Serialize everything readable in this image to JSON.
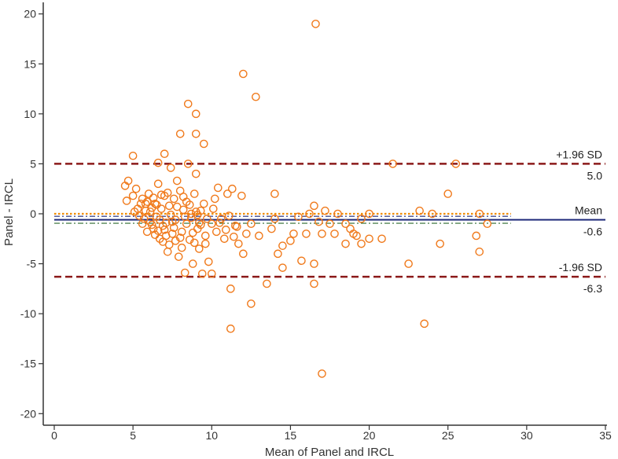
{
  "chart_data": {
    "type": "scatter",
    "title": "",
    "xlabel": "Mean of Panel and IRCL",
    "ylabel": "Panel - IRCL",
    "xlim": [
      0,
      35
    ],
    "ylim": [
      -21,
      21
    ],
    "xticks": [
      0,
      5,
      10,
      15,
      20,
      25,
      30,
      35
    ],
    "yticks": [
      -20,
      -15,
      -10,
      -5,
      0,
      5,
      10,
      15,
      20
    ],
    "grid": false,
    "reference_lines": [
      {
        "name": "+1.96 SD",
        "value": 5.0,
        "value_label": "5.0",
        "color": "#8b1a1a",
        "style": "dashed"
      },
      {
        "name": "Mean",
        "value": -0.6,
        "value_label": "-0.6",
        "color": "#1f2a7a",
        "style": "solid"
      },
      {
        "name": "-1.96 SD",
        "value": -6.3,
        "value_label": "-6.3",
        "color": "#8b1a1a",
        "style": "dashed"
      },
      {
        "name": "zero",
        "value": 0.0,
        "color": "#f08c00",
        "style": "dotted"
      },
      {
        "name": "ci-upper",
        "value": -0.25,
        "color": "#1f2a7a",
        "style": "dashdot"
      },
      {
        "name": "ci-lower",
        "value": -0.95,
        "color": "#2e6b2e",
        "style": "dashdot"
      }
    ],
    "ref_line_x_end": 29,
    "marker_color": "#f07a1c",
    "points": [
      [
        4.5,
        2.8
      ],
      [
        4.7,
        3.3
      ],
      [
        4.6,
        1.3
      ],
      [
        5.0,
        5.8
      ],
      [
        5.0,
        1.8
      ],
      [
        5.2,
        2.5
      ],
      [
        5.1,
        0.2
      ],
      [
        5.3,
        0.5
      ],
      [
        5.4,
        -0.2
      ],
      [
        5.5,
        1.0
      ],
      [
        5.6,
        1.5
      ],
      [
        5.7,
        -0.5
      ],
      [
        5.8,
        0.3
      ],
      [
        5.6,
        -1.0
      ],
      [
        5.9,
        1.2
      ],
      [
        6.0,
        2.0
      ],
      [
        6.1,
        -0.8
      ],
      [
        6.2,
        0.6
      ],
      [
        6.3,
        -1.5
      ],
      [
        6.4,
        1.0
      ],
      [
        6.5,
        -0.3
      ],
      [
        6.6,
        3.0
      ],
      [
        6.6,
        5.1
      ],
      [
        6.7,
        -2.5
      ],
      [
        6.8,
        0.5
      ],
      [
        6.9,
        -1.2
      ],
      [
        7.0,
        6.0
      ],
      [
        7.0,
        1.8
      ],
      [
        7.1,
        -0.9
      ],
      [
        7.2,
        -3.8
      ],
      [
        7.3,
        0.8
      ],
      [
        7.4,
        4.6
      ],
      [
        7.5,
        -2.0
      ],
      [
        7.6,
        1.5
      ],
      [
        7.7,
        -0.6
      ],
      [
        7.8,
        3.3
      ],
      [
        7.9,
        -4.3
      ],
      [
        8.0,
        8.0
      ],
      [
        8.0,
        2.3
      ],
      [
        8.1,
        -1.8
      ],
      [
        8.2,
        0.4
      ],
      [
        8.3,
        -5.9
      ],
      [
        8.4,
        1.2
      ],
      [
        8.5,
        11.0
      ],
      [
        8.5,
        5.0
      ],
      [
        8.6,
        -2.6
      ],
      [
        8.7,
        0.0
      ],
      [
        8.8,
        -5.0
      ],
      [
        8.9,
        2.0
      ],
      [
        9.0,
        10.0
      ],
      [
        9.0,
        8.0
      ],
      [
        9.0,
        4.0
      ],
      [
        9.1,
        -1.5
      ],
      [
        9.2,
        -3.5
      ],
      [
        9.3,
        0.3
      ],
      [
        9.4,
        -6.0
      ],
      [
        9.5,
        7.0
      ],
      [
        9.5,
        1.0
      ],
      [
        9.6,
        -2.2
      ],
      [
        9.7,
        -0.5
      ],
      [
        9.8,
        -4.8
      ],
      [
        10.0,
        -1.0
      ],
      [
        10.0,
        -6.0
      ],
      [
        10.2,
        1.5
      ],
      [
        10.4,
        2.6
      ],
      [
        10.6,
        -0.5
      ],
      [
        10.8,
        -2.5
      ],
      [
        11.0,
        2.0
      ],
      [
        11.1,
        -0.2
      ],
      [
        11.2,
        -7.5
      ],
      [
        11.2,
        -11.5
      ],
      [
        11.3,
        2.5
      ],
      [
        11.5,
        -1.2
      ],
      [
        11.7,
        -3.0
      ],
      [
        11.9,
        1.8
      ],
      [
        12.0,
        14.0
      ],
      [
        12.0,
        -4.0
      ],
      [
        12.2,
        -2.0
      ],
      [
        12.5,
        -9.0
      ],
      [
        12.5,
        -1.0
      ],
      [
        12.8,
        11.7
      ],
      [
        13.0,
        -2.2
      ],
      [
        13.5,
        -7.0
      ],
      [
        14.0,
        2.0
      ],
      [
        14.0,
        -0.5
      ],
      [
        14.2,
        -4.0
      ],
      [
        14.5,
        -5.4
      ],
      [
        14.5,
        -3.2
      ],
      [
        15.0,
        -2.7
      ],
      [
        15.5,
        -0.3
      ],
      [
        15.7,
        -4.7
      ],
      [
        16.0,
        -2.0
      ],
      [
        16.2,
        0.0
      ],
      [
        16.5,
        0.8
      ],
      [
        16.5,
        -5.0
      ],
      [
        16.5,
        -7.0
      ],
      [
        16.6,
        19.0
      ],
      [
        17.0,
        -2.0
      ],
      [
        17.0,
        -16.0
      ],
      [
        17.2,
        0.3
      ],
      [
        17.5,
        -1.0
      ],
      [
        17.8,
        -2.0
      ],
      [
        18.0,
        0.0
      ],
      [
        18.5,
        -1.0
      ],
      [
        18.5,
        -3.0
      ],
      [
        19.0,
        -2.0
      ],
      [
        19.5,
        -0.5
      ],
      [
        19.5,
        -3.0
      ],
      [
        20.0,
        0.0
      ],
      [
        20.0,
        -2.5
      ],
      [
        20.8,
        -2.5
      ],
      [
        21.5,
        5.0
      ],
      [
        22.5,
        -5.0
      ],
      [
        23.2,
        0.3
      ],
      [
        23.5,
        -11.0
      ],
      [
        24.0,
        0.0
      ],
      [
        24.5,
        -3.0
      ],
      [
        25.0,
        2.0
      ],
      [
        25.5,
        5.0
      ],
      [
        26.8,
        -2.2
      ],
      [
        27.0,
        0.0
      ],
      [
        27.0,
        -3.8
      ],
      [
        27.5,
        -1.0
      ],
      [
        5.8,
        1.0
      ],
      [
        6.1,
        0.2
      ],
      [
        6.3,
        1.6
      ],
      [
        6.5,
        0.9
      ],
      [
        6.7,
        -0.6
      ],
      [
        6.8,
        1.9
      ],
      [
        7.0,
        -1.6
      ],
      [
        7.2,
        2.1
      ],
      [
        7.4,
        -0.1
      ],
      [
        7.6,
        -1.4
      ],
      [
        7.8,
        0.7
      ],
      [
        8.0,
        -2.4
      ],
      [
        8.2,
        1.7
      ],
      [
        8.4,
        -1.0
      ],
      [
        8.6,
        0.9
      ],
      [
        8.8,
        -1.9
      ],
      [
        9.0,
        0.2
      ],
      [
        9.2,
        -0.9
      ],
      [
        6.9,
        -2.8
      ],
      [
        7.3,
        -3.1
      ],
      [
        7.7,
        -2.7
      ],
      [
        8.1,
        -3.4
      ],
      [
        8.3,
        -0.3
      ],
      [
        8.7,
        -0.4
      ],
      [
        6.2,
        -1.1
      ],
      [
        6.4,
        -2.1
      ],
      [
        7.1,
        -2.2
      ],
      [
        5.9,
        -1.8
      ],
      [
        6.6,
        -1.7
      ],
      [
        7.5,
        -0.8
      ],
      [
        8.9,
        -2.9
      ],
      [
        9.1,
        -0.1
      ],
      [
        9.3,
        -1.1
      ],
      [
        9.6,
        -3.0
      ],
      [
        10.1,
        0.5
      ],
      [
        10.3,
        -1.8
      ],
      [
        10.5,
        -0.9
      ],
      [
        10.9,
        -1.6
      ],
      [
        11.4,
        -2.3
      ],
      [
        11.6,
        -1.3
      ],
      [
        13.8,
        -1.5
      ],
      [
        15.2,
        -2.0
      ],
      [
        16.8,
        -0.8
      ],
      [
        18.8,
        -1.5
      ],
      [
        19.2,
        -2.2
      ]
    ]
  }
}
